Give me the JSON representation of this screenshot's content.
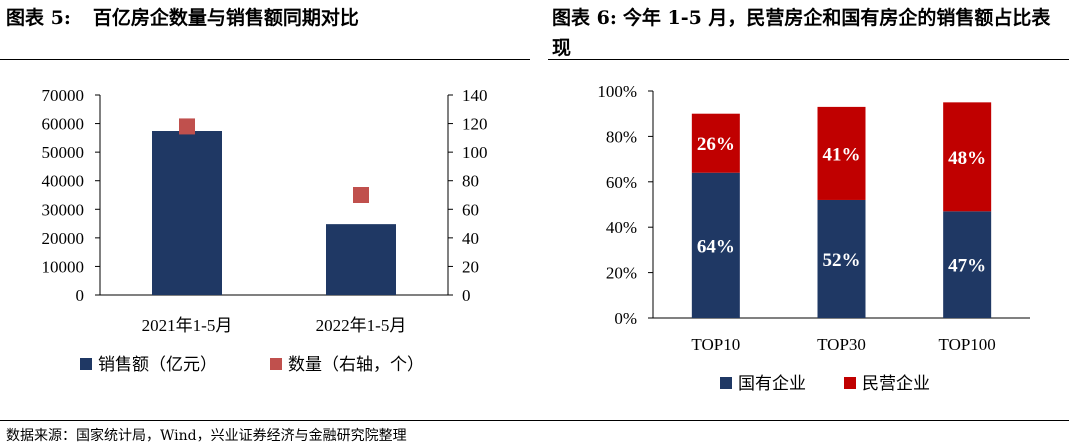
{
  "captions": {
    "left_num": "图表 5:",
    "left_text": "百亿房企数量与销售额同期对比",
    "right_num": "图表 6:",
    "right_text": "今年 1-5 月，民营房企和国有房企的销售额占比表现"
  },
  "source": "数据来源：国家统计局，Wind，兴业证券经济与金融研究院整理",
  "chart_data": [
    {
      "type": "bar",
      "categories": [
        "2021年1-5月",
        "2022年1-5月"
      ],
      "series": [
        {
          "name": "销售额（亿元）",
          "kind": "bar",
          "axis": "left",
          "color": "#1f3864",
          "values": [
            57400,
            24800
          ]
        },
        {
          "name": "数量（右轴，个）",
          "kind": "marker",
          "axis": "right",
          "color": "#c0504d",
          "values": [
            118,
            70
          ]
        }
      ],
      "ylim": [
        0,
        70000
      ],
      "yticks": [
        0,
        10000,
        20000,
        30000,
        40000,
        50000,
        60000,
        70000
      ],
      "y2lim": [
        0,
        140
      ],
      "y2ticks": [
        0,
        20,
        40,
        60,
        80,
        100,
        120,
        140
      ],
      "legend_position": "bottom",
      "grid": false
    },
    {
      "type": "bar",
      "stacked": true,
      "categories": [
        "TOP10",
        "TOP30",
        "TOP100"
      ],
      "series": [
        {
          "name": "国有企业",
          "color": "#1f3864",
          "values": [
            64,
            52,
            47
          ],
          "labels": [
            "64%",
            "52%",
            "47%"
          ]
        },
        {
          "name": "民营企业",
          "color": "#c00000",
          "values": [
            26,
            41,
            48
          ],
          "labels": [
            "26%",
            "41%",
            "48%"
          ]
        }
      ],
      "ylim": [
        0,
        100
      ],
      "yticks": [
        "0%",
        "20%",
        "40%",
        "60%",
        "80%",
        "100%"
      ],
      "legend_position": "bottom",
      "grid": false
    }
  ]
}
